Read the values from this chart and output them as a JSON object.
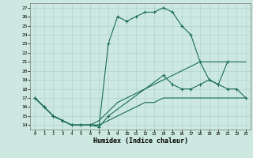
{
  "xlabel": "Humidex (Indice chaleur)",
  "bg_color": "#cce8e0",
  "line_color": "#1a6b5a",
  "grid_color": "#a8d0c8",
  "xlim": [
    -0.5,
    23.5
  ],
  "ylim": [
    13.5,
    27.5
  ],
  "xticks": [
    0,
    1,
    2,
    3,
    4,
    5,
    6,
    7,
    8,
    9,
    10,
    11,
    12,
    13,
    14,
    15,
    16,
    17,
    18,
    19,
    20,
    21,
    22,
    23
  ],
  "yticks": [
    14,
    15,
    16,
    17,
    18,
    19,
    20,
    21,
    22,
    23,
    24,
    25,
    26,
    27
  ],
  "line1_x": [
    0,
    1,
    2,
    3,
    4,
    5,
    6,
    7,
    8,
    9,
    10,
    11,
    12,
    13,
    14,
    15,
    16,
    17,
    18,
    19,
    20,
    21
  ],
  "line1_y": [
    17,
    16,
    15,
    14.5,
    14,
    14,
    14,
    14,
    23,
    26,
    25.5,
    26,
    26.5,
    26.5,
    27,
    26.5,
    25,
    24,
    21,
    19,
    18.5,
    21
  ],
  "line2_x": [
    0,
    1,
    2,
    3,
    4,
    5,
    6,
    7,
    8,
    9,
    10,
    11,
    12,
    13,
    14,
    15,
    16,
    17,
    18,
    19,
    20,
    21,
    22,
    23
  ],
  "line2_y": [
    17,
    16,
    15,
    14.5,
    14,
    14,
    14,
    14.5,
    15.5,
    16.5,
    17,
    17.5,
    18,
    18.5,
    19,
    19.5,
    20,
    20.5,
    21,
    21,
    21,
    21,
    21,
    21
  ],
  "line3_x": [
    0,
    1,
    2,
    3,
    4,
    5,
    6,
    7,
    8,
    9,
    10,
    11,
    12,
    13,
    14,
    15,
    16,
    17,
    18,
    19,
    20,
    21,
    22,
    23
  ],
  "line3_y": [
    17,
    16,
    15,
    14.5,
    14,
    14,
    14,
    14,
    14.5,
    15,
    15.5,
    16,
    16.5,
    16.5,
    17,
    17,
    17,
    17,
    17,
    17,
    17,
    17,
    17,
    17
  ],
  "line4_x": [
    0,
    1,
    2,
    3,
    4,
    5,
    6,
    7,
    8,
    14,
    15,
    16,
    17,
    18,
    19,
    20,
    21,
    22,
    23
  ],
  "line4_y": [
    17,
    16,
    15,
    14.5,
    14,
    14,
    14,
    13.8,
    15,
    19.5,
    18.5,
    18,
    18,
    18.5,
    19,
    18.5,
    18,
    18,
    17
  ],
  "marker": "+",
  "markersize": 3.5
}
